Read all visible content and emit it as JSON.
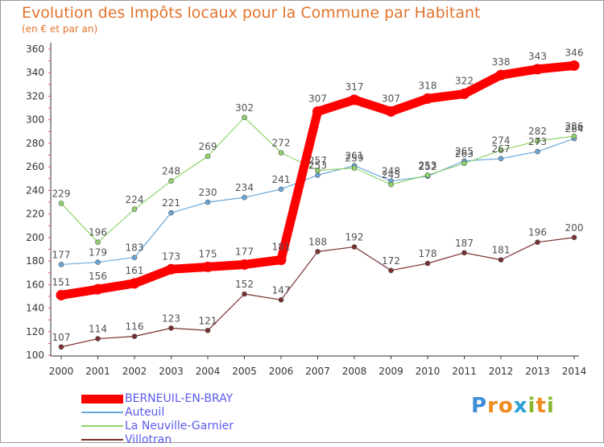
{
  "header": {
    "title": "Evolution des Impôts locaux pour la Commune par Habitant",
    "subtitle": "(en € et par an)"
  },
  "brand": {
    "logo_text": "Proxiti",
    "letters": [
      "P",
      "r",
      "o",
      "x",
      "i",
      "t",
      "i"
    ],
    "letter_colors": [
      "#3f8fd8",
      "#ef8a1e",
      "#ef8a1e",
      "#2a9fd6",
      "#8ab82e",
      "#ef8a1e",
      "#8ab82e"
    ]
  },
  "chart_data": {
    "type": "line",
    "title": "Evolution des Impôts locaux pour la Commune par Habitant",
    "subtitle": "(en € et par an)",
    "x": [
      "2000",
      "2001",
      "2002",
      "2003",
      "2004",
      "2005",
      "2006",
      "2007",
      "2008",
      "2009",
      "2010",
      "2011",
      "2012",
      "2013",
      "2014"
    ],
    "ylim": [
      100,
      360
    ],
    "yticks": [
      100,
      120,
      140,
      160,
      180,
      200,
      220,
      240,
      260,
      280,
      300,
      320,
      340,
      360
    ],
    "grid": false,
    "legend_position": "bottom-left",
    "series": [
      {
        "name": "BERNEUIL-EN-BRAY",
        "color": "#ff0000",
        "emphasis": true,
        "values": [
          151,
          156,
          161,
          173,
          175,
          177,
          181,
          307,
          317,
          307,
          318,
          322,
          338,
          343,
          346
        ]
      },
      {
        "name": "Auteuil",
        "color": "#6aa7d9",
        "emphasis": false,
        "values": [
          177,
          179,
          183,
          221,
          230,
          234,
          241,
          253,
          261,
          248,
          252,
          265,
          267,
          273,
          284
        ]
      },
      {
        "name": "La Neuville-Garnier",
        "color": "#8fd36a",
        "emphasis": false,
        "values": [
          229,
          196,
          224,
          248,
          269,
          302,
          272,
          257,
          259,
          245,
          253,
          263,
          274,
          282,
          286
        ]
      },
      {
        "name": "Villotran",
        "color": "#7a2f2f",
        "emphasis": false,
        "values": [
          107,
          114,
          116,
          123,
          121,
          152,
          147,
          188,
          192,
          172,
          178,
          187,
          181,
          196,
          200
        ]
      }
    ]
  }
}
